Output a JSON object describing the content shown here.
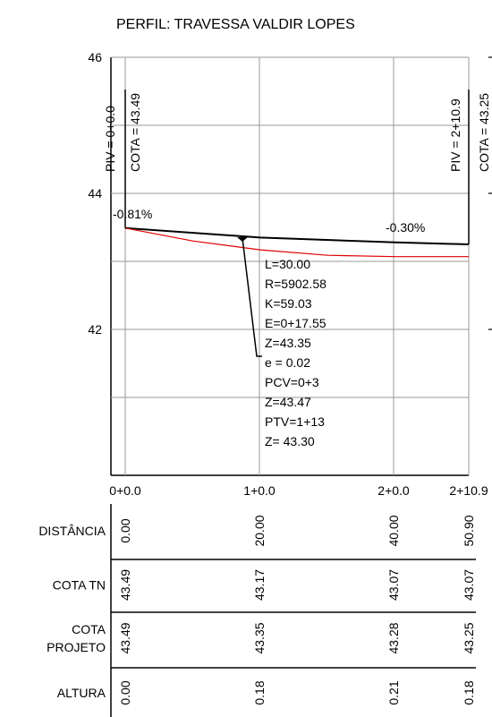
{
  "title": "PERFIL: TRAVESSA VALDIR LOPES",
  "chart_data": {
    "type": "line",
    "y_ticks": [
      "46",
      "44",
      "42"
    ],
    "x_ticks": [
      "0+0.0",
      "1+0.0",
      "2+0.0",
      "2+10.9"
    ],
    "xlim": [
      0,
      50.9
    ],
    "ylim": [
      40,
      46
    ],
    "grid": true,
    "series": [
      {
        "x": [
          0,
          20,
          40,
          50.9
        ],
        "y": [
          43.49,
          43.35,
          43.28,
          43.25
        ]
      },
      {
        "x": [
          0,
          10,
          20,
          30,
          40,
          50.9
        ],
        "y": [
          43.49,
          43.3,
          43.17,
          43.09,
          43.07,
          43.07
        ]
      }
    ],
    "grade_left": "-0.81%",
    "grade_right": "-0.30%",
    "piv_start": {
      "label": "PIV = 0+0.0",
      "cota": "COTA = 43.49"
    },
    "piv_end": {
      "label": "PIV = 2+10.9",
      "cota": "COTA = 43.25"
    },
    "curve_info": [
      "L=30.00",
      "R=5902.58",
      "K=59.03",
      "E=0+17.55",
      "Z=43.35",
      "e = 0.02",
      "PCV=0+3",
      "Z=43.47",
      "PTV=1+13",
      "Z= 43.30"
    ]
  },
  "table": {
    "rows": [
      {
        "label": [
          "DISTÂNCIA"
        ],
        "values": [
          "0.00",
          "20.00",
          "40.00",
          "50.90"
        ]
      },
      {
        "label": [
          "COTA TN"
        ],
        "values": [
          "43.49",
          "43.17",
          "43.07",
          "43.07"
        ]
      },
      {
        "label": [
          "COTA",
          "PROJETO"
        ],
        "values": [
          "43.49",
          "43.35",
          "43.28",
          "43.25"
        ]
      },
      {
        "label": [
          "ALTURA"
        ],
        "values": [
          "0.00",
          "0.18",
          "0.21",
          "0.18"
        ]
      }
    ]
  }
}
